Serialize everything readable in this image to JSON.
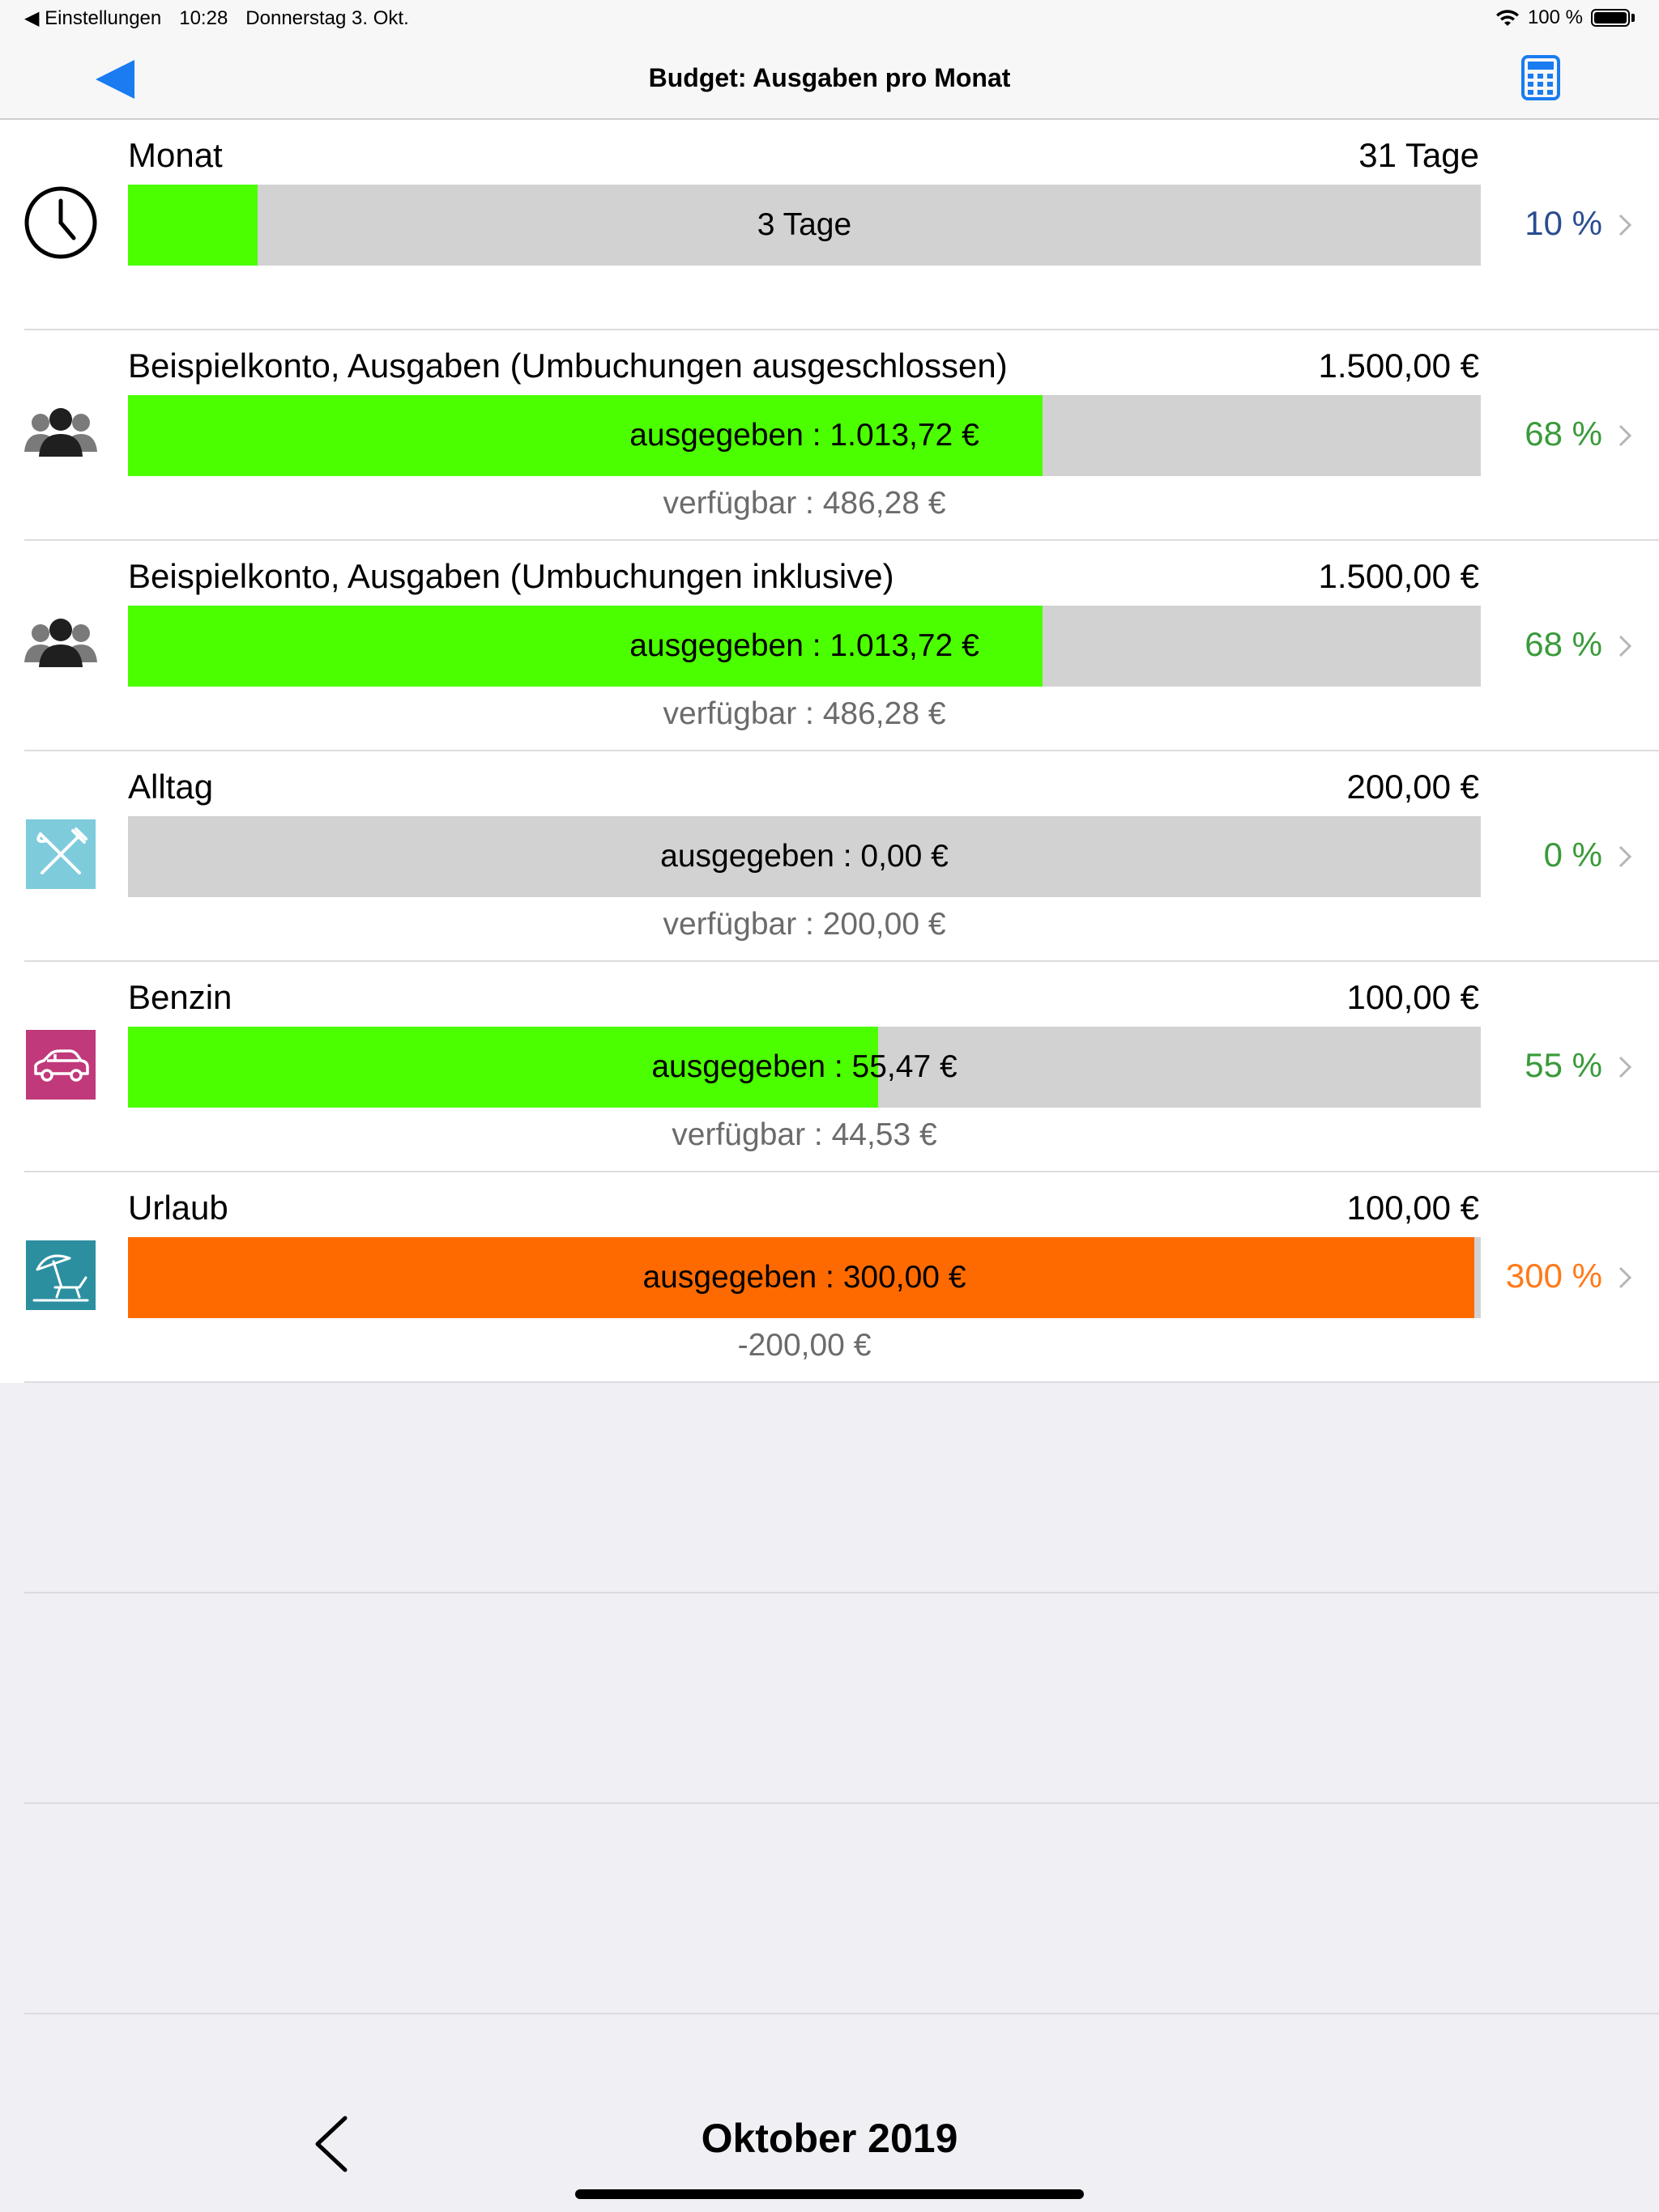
{
  "status_bar": {
    "back_app": "◀ Einstellungen",
    "time": "10:28",
    "date": "Donnerstag 3. Okt.",
    "battery": "100 %"
  },
  "nav": {
    "title": "Budget: Ausgaben pro Monat",
    "back_icon": "back-arrow-icon",
    "calc_icon": "calculator-icon"
  },
  "colors": {
    "accent_blue": "#1a7cf0",
    "bar_green": "#4cff00",
    "bar_orange": "#ff6a00",
    "bar_gray": "#d2d2d2",
    "pct_blue": "#2a4d8f",
    "pct_green": "#3a9a3a",
    "pct_orange": "#ff7a1a"
  },
  "rows": [
    {
      "icon": "clock-icon",
      "title": "Monat",
      "total": "31 Tage",
      "bar_label": "3 Tage",
      "sub": "",
      "percent_label": "10 %",
      "progress": 0.096,
      "fill_color": "#4cff00",
      "percent_color": "#2a4d8f"
    },
    {
      "icon": "people-icon",
      "title": "Beispielkonto, Ausgaben (Umbuchungen ausgeschlossen)",
      "total": "1.500,00 €",
      "bar_label": "ausgegeben : 1.013,72 €",
      "sub": "verfügbar : 486,28 €",
      "percent_label": "68 %",
      "progress": 0.6758,
      "fill_color": "#4cff00",
      "percent_color": "#3a9a3a"
    },
    {
      "icon": "people-icon",
      "title": "Beispielkonto, Ausgaben (Umbuchungen inklusive)",
      "total": "1.500,00 €",
      "bar_label": "ausgegeben : 1.013,72 €",
      "sub": "verfügbar : 486,28 €",
      "percent_label": "68 %",
      "progress": 0.6758,
      "fill_color": "#4cff00",
      "percent_color": "#3a9a3a"
    },
    {
      "icon": "fork-knife-icon",
      "title": "Alltag",
      "total": "200,00 €",
      "bar_label": "ausgegeben : 0,00 €",
      "sub": "verfügbar : 200,00 €",
      "percent_label": "0 %",
      "progress": 0,
      "fill_color": "#4cff00",
      "percent_color": "#3a9a3a"
    },
    {
      "icon": "car-icon",
      "title": "Benzin",
      "total": "100,00 €",
      "bar_label": "ausgegeben : 55,47 €",
      "sub": "verfügbar : 44,53 €",
      "percent_label": "55 %",
      "progress": 0.5547,
      "fill_color": "#4cff00",
      "percent_color": "#3a9a3a"
    },
    {
      "icon": "beach-umbrella-icon",
      "title": "Urlaub",
      "total": "100,00 €",
      "bar_label": "ausgegeben : 300,00 €",
      "sub": "-200,00 €",
      "percent_label": "300 %",
      "progress": 0.995,
      "fill_color": "#ff6a00",
      "percent_color": "#ff7a1a"
    }
  ],
  "bottom": {
    "prev_icon": "chevron-left-icon",
    "month": "Oktober 2019"
  }
}
